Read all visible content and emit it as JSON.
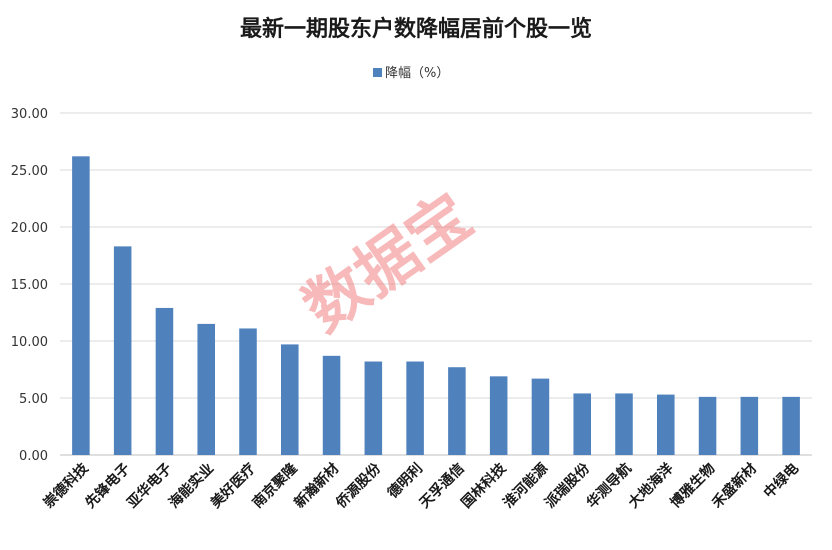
{
  "chart_data": {
    "type": "bar",
    "title": "最新一期股东户数降幅居前个股一览",
    "legend": "降幅（%）",
    "legend_position": "top",
    "series": [
      {
        "name": "降幅（%）",
        "values": [
          26.2,
          18.3,
          12.9,
          11.5,
          11.1,
          9.7,
          8.7,
          8.2,
          8.2,
          7.7,
          6.9,
          6.7,
          5.4,
          5.4,
          5.3,
          5.1,
          5.1,
          5.1
        ]
      }
    ],
    "categories": [
      "崇德科技",
      "先锋电子",
      "亚华电子",
      "海能实业",
      "美好医疗",
      "南京聚隆",
      "新瀚新材",
      "侨源股份",
      "德明利",
      "天孚通信",
      "国林科技",
      "淮河能源",
      "派瑞股份",
      "华测导航",
      "大地海洋",
      "博雅生物",
      "禾盛新材",
      "中绿电"
    ],
    "yticks": [
      "0.00",
      "5.00",
      "10.00",
      "15.00",
      "20.00",
      "25.00",
      "30.00"
    ],
    "ylim": [
      0,
      30
    ],
    "grid": true,
    "bar_color": "#4f81bd"
  },
  "watermark": "数据宝"
}
